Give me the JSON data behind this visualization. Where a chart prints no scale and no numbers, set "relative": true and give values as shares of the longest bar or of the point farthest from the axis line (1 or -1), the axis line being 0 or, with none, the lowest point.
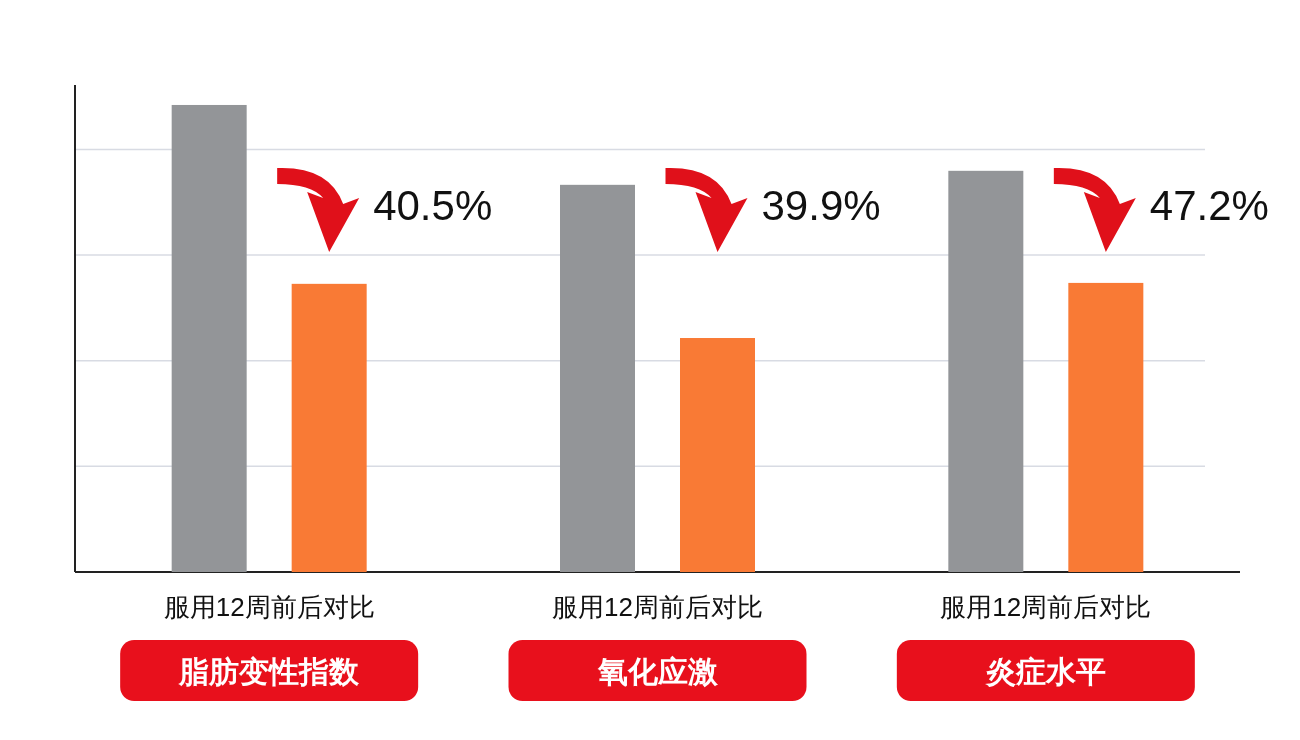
{
  "chart_data": {
    "type": "bar",
    "relative": true,
    "grid": "y",
    "categories": [
      "脂肪变性指数",
      "氧化应激",
      "炎症水平"
    ],
    "series": [
      {
        "color": "#939598",
        "values": [
          1,
          0.829,
          0.859
        ]
      },
      {
        "color": "#f97a35",
        "values": [
          0.617,
          0.501,
          0.619
        ]
      }
    ],
    "annotations": [
      "40.5%",
      "39.9%",
      "47.2%",
      "服用12周前后对比",
      "服用12周前后对比",
      "服用12周前后对比"
    ]
  }
}
